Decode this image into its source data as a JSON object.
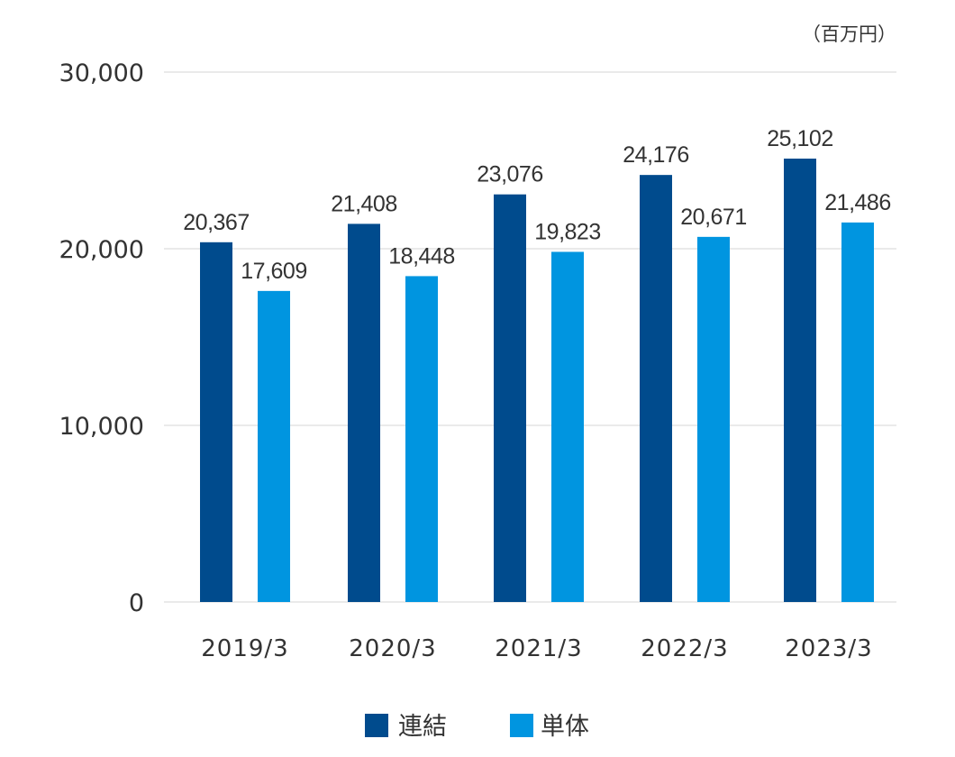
{
  "chart_data": {
    "type": "bar",
    "unit_label": "（百万円）",
    "categories": [
      "2019/3",
      "2020/3",
      "2021/3",
      "2022/3",
      "2023/3"
    ],
    "series": [
      {
        "name": "連結",
        "color": "#004b8d",
        "values": [
          20367,
          21408,
          23076,
          24176,
          25102
        ],
        "labels": [
          "20,367",
          "21,408",
          "23,076",
          "24,176",
          "25,102"
        ]
      },
      {
        "name": "単体",
        "color": "#0095e0",
        "values": [
          17609,
          18448,
          19823,
          20671,
          21486
        ],
        "labels": [
          "17,609",
          "18,448",
          "19,823",
          "20,671",
          "21,486"
        ]
      }
    ],
    "ylim": [
      0,
      30000
    ],
    "yticks": [
      0,
      10000,
      20000,
      30000
    ],
    "ytick_labels": [
      "0",
      "10,000",
      "20,000",
      "30,000"
    ],
    "grid": true,
    "legend_position": "bottom-center"
  }
}
